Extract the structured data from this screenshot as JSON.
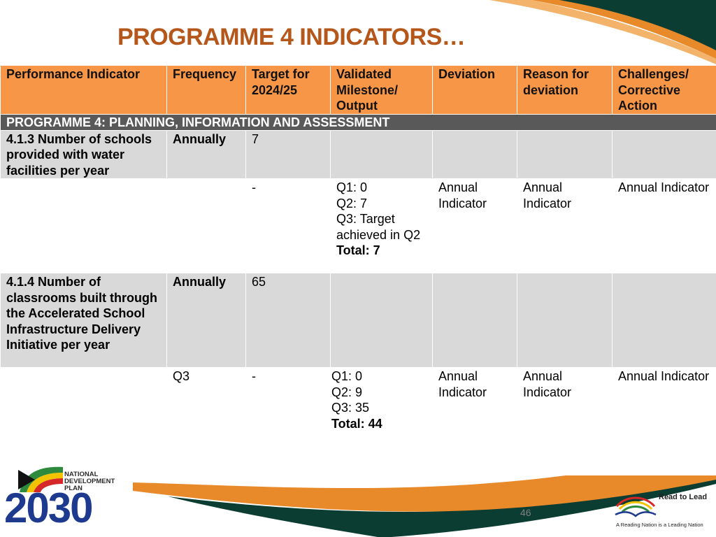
{
  "slide": {
    "title": "PROGRAMME 4 INDICATORS…",
    "page_number": "46"
  },
  "table": {
    "headers": [
      "Performance Indicator",
      "Frequency",
      "Target for 2024/25",
      "Validated Milestone/ Output",
      "Deviation",
      "Reason for deviation",
      "Challenges/ Corrective Action"
    ],
    "section_title": "PROGRAMME 4: PLANNING, INFORMATION AND ASSESSMENT",
    "indicators": [
      {
        "indicator": "4.1.3 Number of schools provided with water facilities per year",
        "frequency": "Annually",
        "target": "7",
        "detail": {
          "frequency": "",
          "target": "-",
          "milestones": [
            "Q1: 0",
            "Q2: 7",
            "Q3: Target achieved in Q2"
          ],
          "total": "Total: 7",
          "deviation": "Annual Indicator",
          "reason": "Annual Indicator",
          "challenges": "Annual Indicator"
        }
      },
      {
        "indicator": "4.1.4 Number of classrooms built through the Accelerated School Infrastructure Delivery Initiative per year",
        "frequency": "Annually",
        "target": "65",
        "detail": {
          "frequency": "Q3",
          "target": "-",
          "milestones": [
            "Q1: 0",
            "Q2: 9",
            "Q3: 35"
          ],
          "total": "Total: 44",
          "deviation": "Annual Indicator",
          "reason": "Annual Indicator",
          "challenges": "Annual Indicator"
        }
      }
    ]
  },
  "logos": {
    "ndp": {
      "line1": "NATIONAL",
      "line2": "DEVELOPMENT",
      "line3": "PLAN",
      "year": "2030"
    },
    "read_to_lead": {
      "title": "Read to Lead",
      "tagline": "A Reading Nation is a Leading Nation"
    }
  },
  "colors": {
    "title": "#b5561a",
    "header_fill": "#f79646",
    "section_fill": "#595959",
    "grey_row": "#d9d9d9",
    "accent_orange": "#e8892a",
    "accent_dark_green": "#0b3d33"
  }
}
